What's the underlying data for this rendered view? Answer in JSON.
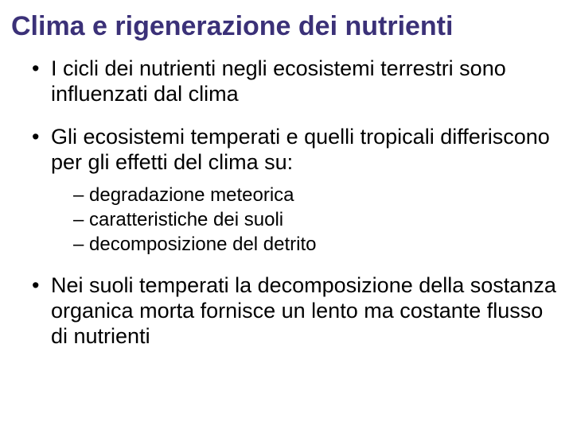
{
  "slide": {
    "title": "Clima e rigenerazione dei nutrienti",
    "title_color": "#3b3178",
    "title_fontsize": 34,
    "background_color": "#ffffff",
    "bullets": [
      {
        "text": "I cicli dei nutrienti negli ecosistemi terrestri sono influenzati dal clima",
        "fontsize": 27,
        "color": "#000000"
      },
      {
        "text": "Gli ecosistemi temperati e quelli tropicali differiscono per gli effetti del clima su:",
        "fontsize": 27,
        "color": "#000000",
        "sub": [
          {
            "text": "degradazione meteorica",
            "fontsize": 24
          },
          {
            "text": "caratteristiche dei suoli",
            "fontsize": 24
          },
          {
            "text": "decomposizione del detrito",
            "fontsize": 24
          }
        ]
      },
      {
        "text": "Nei suoli temperati la decomposizione della sostanza organica morta fornisce un lento ma costante flusso di nutrienti",
        "fontsize": 27,
        "color": "#000000"
      }
    ]
  }
}
